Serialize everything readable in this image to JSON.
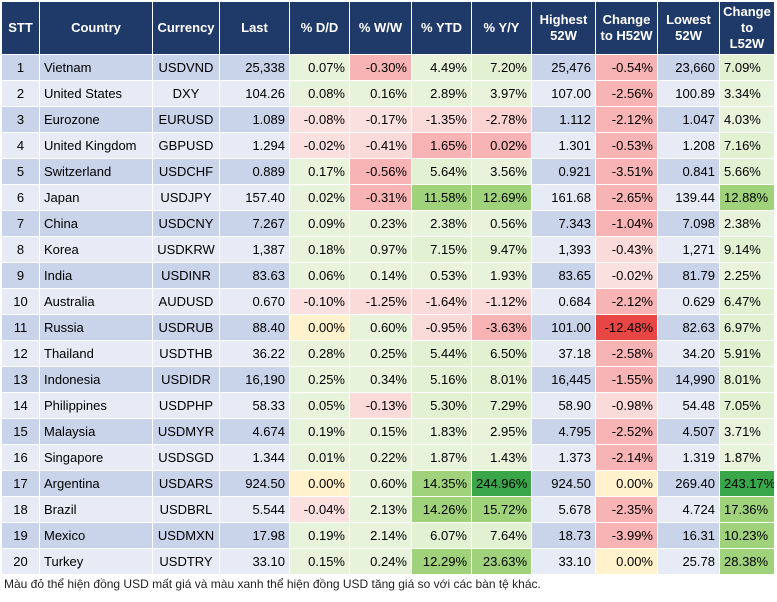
{
  "table": {
    "headers": [
      "STT",
      "Country",
      "Currency",
      "Last",
      "% D/D",
      "% W/W",
      "% YTD",
      "% Y/Y",
      "Highest 52W",
      "Change to H52W",
      "Lowest 52W",
      "Change to L52W"
    ],
    "rows": [
      [
        "1",
        "Vietnam",
        "USDVND",
        "25,338",
        "0.07%",
        "-0.30%",
        "4.49%",
        "7.20%",
        "25,476",
        "-0.54%",
        "23,660",
        "7.09%"
      ],
      [
        "2",
        "United States",
        "DXY",
        "104.26",
        "0.08%",
        "0.16%",
        "2.89%",
        "3.97%",
        "107.00",
        "-2.56%",
        "100.89",
        "3.34%"
      ],
      [
        "3",
        "Eurozone",
        "EURUSD",
        "1.089",
        "-0.08%",
        "-0.17%",
        "-1.35%",
        "-2.78%",
        "1.112",
        "-2.12%",
        "1.047",
        "4.03%"
      ],
      [
        "4",
        "United Kingdom",
        "GBPUSD",
        "1.294",
        "-0.02%",
        "-0.41%",
        "1.65%",
        "0.02%",
        "1.301",
        "-0.53%",
        "1.208",
        "7.16%"
      ],
      [
        "5",
        "Switzerland",
        "USDCHF",
        "0.889",
        "0.17%",
        "-0.56%",
        "5.64%",
        "3.56%",
        "0.921",
        "-3.51%",
        "0.841",
        "5.66%"
      ],
      [
        "6",
        "Japan",
        "USDJPY",
        "157.40",
        "0.02%",
        "-0.31%",
        "11.58%",
        "12.69%",
        "161.68",
        "-2.65%",
        "139.44",
        "12.88%"
      ],
      [
        "7",
        "China",
        "USDCNY",
        "7.267",
        "0.09%",
        "0.23%",
        "2.38%",
        "0.56%",
        "7.343",
        "-1.04%",
        "7.098",
        "2.38%"
      ],
      [
        "8",
        "Korea",
        "USDKRW",
        "1,387",
        "0.18%",
        "0.97%",
        "7.15%",
        "9.47%",
        "1,393",
        "-0.43%",
        "1,271",
        "9.14%"
      ],
      [
        "9",
        "India",
        "USDINR",
        "83.63",
        "0.06%",
        "0.14%",
        "0.53%",
        "1.93%",
        "83.65",
        "-0.02%",
        "81.79",
        "2.25%"
      ],
      [
        "10",
        "Australia",
        "AUDUSD",
        "0.670",
        "-0.10%",
        "-1.25%",
        "-1.64%",
        "-1.12%",
        "0.684",
        "-2.12%",
        "0.629",
        "6.47%"
      ],
      [
        "11",
        "Russia",
        "USDRUB",
        "88.40",
        "0.00%",
        "0.60%",
        "-0.95%",
        "-3.63%",
        "101.00",
        "-12.48%",
        "82.63",
        "6.97%"
      ],
      [
        "12",
        "Thailand",
        "USDTHB",
        "36.22",
        "0.28%",
        "0.25%",
        "5.44%",
        "6.50%",
        "37.18",
        "-2.58%",
        "34.20",
        "5.91%"
      ],
      [
        "13",
        "Indonesia",
        "USDIDR",
        "16,190",
        "0.25%",
        "0.34%",
        "5.16%",
        "8.01%",
        "16,445",
        "-1.55%",
        "14,990",
        "8.01%"
      ],
      [
        "14",
        "Philippines",
        "USDPHP",
        "58.33",
        "0.05%",
        "-0.13%",
        "5.30%",
        "7.29%",
        "58.90",
        "-0.98%",
        "54.48",
        "7.05%"
      ],
      [
        "15",
        "Malaysia",
        "USDMYR",
        "4.674",
        "0.19%",
        "0.15%",
        "1.83%",
        "2.95%",
        "4.795",
        "-2.52%",
        "4.507",
        "3.71%"
      ],
      [
        "16",
        "Singapore",
        "USDSGD",
        "1.344",
        "0.01%",
        "0.22%",
        "1.87%",
        "1.43%",
        "1.373",
        "-2.14%",
        "1.319",
        "1.87%"
      ],
      [
        "17",
        "Argentina",
        "USDARS",
        "924.50",
        "0.00%",
        "0.60%",
        "14.35%",
        "244.96%",
        "924.50",
        "0.00%",
        "269.40",
        "243.17%"
      ],
      [
        "18",
        "Brazil",
        "USDBRL",
        "5.544",
        "-0.04%",
        "2.13%",
        "14.26%",
        "15.72%",
        "5.678",
        "-2.35%",
        "4.724",
        "17.36%"
      ],
      [
        "19",
        "Mexico",
        "USDMXN",
        "17.98",
        "0.19%",
        "2.14%",
        "6.07%",
        "7.64%",
        "18.73",
        "-3.99%",
        "16.31",
        "10.23%"
      ],
      [
        "20",
        "Turkey",
        "USDTRY",
        "33.10",
        "0.15%",
        "0.24%",
        "12.29%",
        "23.63%",
        "33.10",
        "0.00%",
        "25.78",
        "28.38%"
      ]
    ],
    "cell_colors": [
      [
        null,
        null,
        null,
        null,
        "#e8f3dc",
        "#f8b4b4",
        "#e8f3dc",
        "#e3f1d3",
        null,
        "#f8b4b4",
        null,
        "#e3f1d3"
      ],
      [
        null,
        null,
        null,
        null,
        "#e8f3dc",
        "#e8f3dc",
        "#e8f3dc",
        "#e8f3dc",
        null,
        "#f8b4b4",
        null,
        "#e8f3dc"
      ],
      [
        null,
        null,
        null,
        null,
        "#fbe0e0",
        "#fbe0e0",
        "#fbdada",
        "#fbd2d2",
        null,
        "#f8b4b4",
        null,
        "#e8f3dc"
      ],
      [
        null,
        null,
        null,
        null,
        "#fbe0e0",
        "#fbdada",
        "#f8b4b4",
        "#f8b4b4",
        null,
        "#f8b4b4",
        null,
        "#e3f1d3"
      ],
      [
        null,
        null,
        null,
        null,
        "#e8f3dc",
        "#f8b4b4",
        "#e3f1d3",
        "#e8f3dc",
        null,
        "#f8b4b4",
        null,
        "#e3f1d3"
      ],
      [
        null,
        null,
        null,
        null,
        "#e8f3dc",
        "#f8b4b4",
        "#9fd27a",
        "#9fd27a",
        null,
        "#f8b4b4",
        null,
        "#9fd27a"
      ],
      [
        null,
        null,
        null,
        null,
        "#e8f3dc",
        "#e8f3dc",
        "#e8f3dc",
        "#e8f3dc",
        null,
        "#f8b4b4",
        null,
        "#e8f3dc"
      ],
      [
        null,
        null,
        null,
        null,
        "#e8f3dc",
        "#e8f3dc",
        "#e3f1d3",
        "#e3f1d3",
        null,
        "#fbdada",
        null,
        "#e3f1d3"
      ],
      [
        null,
        null,
        null,
        null,
        "#e8f3dc",
        "#e8f3dc",
        "#e8f3dc",
        "#e8f3dc",
        null,
        "#fbe0e0",
        null,
        "#e8f3dc"
      ],
      [
        null,
        null,
        null,
        null,
        "#fbe0e0",
        "#fbdada",
        "#fbdada",
        "#fbdada",
        null,
        "#f8b4b4",
        null,
        "#e3f1d3"
      ],
      [
        null,
        null,
        null,
        null,
        "#fff2cc",
        "#e8f3dc",
        "#fbdada",
        "#f8b4b4",
        null,
        "#e84545",
        null,
        "#e3f1d3"
      ],
      [
        null,
        null,
        null,
        null,
        "#e8f3dc",
        "#e8f3dc",
        "#e3f1d3",
        "#e3f1d3",
        null,
        "#f8b4b4",
        null,
        "#e3f1d3"
      ],
      [
        null,
        null,
        null,
        null,
        "#e8f3dc",
        "#e8f3dc",
        "#e3f1d3",
        "#e3f1d3",
        null,
        "#f8b4b4",
        null,
        "#e3f1d3"
      ],
      [
        null,
        null,
        null,
        null,
        "#e8f3dc",
        "#fbdada",
        "#e3f1d3",
        "#e3f1d3",
        null,
        "#fbdada",
        null,
        "#e3f1d3"
      ],
      [
        null,
        null,
        null,
        null,
        "#e8f3dc",
        "#e8f3dc",
        "#e8f3dc",
        "#e8f3dc",
        null,
        "#f8b4b4",
        null,
        "#e8f3dc"
      ],
      [
        null,
        null,
        null,
        null,
        "#e8f3dc",
        "#e8f3dc",
        "#e8f3dc",
        "#e8f3dc",
        null,
        "#f8b4b4",
        null,
        "#e8f3dc"
      ],
      [
        null,
        null,
        null,
        null,
        "#fff2cc",
        "#e8f3dc",
        "#9fd27a",
        "#3aa64a",
        null,
        "#fff2cc",
        null,
        "#3aa64a"
      ],
      [
        null,
        null,
        null,
        null,
        "#fbe0e0",
        "#e8f3dc",
        "#9fd27a",
        "#9fd27a",
        null,
        "#f8b4b4",
        null,
        "#9fd27a"
      ],
      [
        null,
        null,
        null,
        null,
        "#e8f3dc",
        "#e8f3dc",
        "#e3f1d3",
        "#e3f1d3",
        null,
        "#f8b4b4",
        null,
        "#9fd27a"
      ],
      [
        null,
        null,
        null,
        null,
        "#e8f3dc",
        "#e8f3dc",
        "#9fd27a",
        "#9fd27a",
        null,
        "#fff2cc",
        null,
        "#9fd27a"
      ]
    ]
  },
  "footnote": "Màu đỏ thể hiện đồng USD mất giá và màu xanh thể hiện đồng USD tăng giá so với các bàn tệ khác."
}
